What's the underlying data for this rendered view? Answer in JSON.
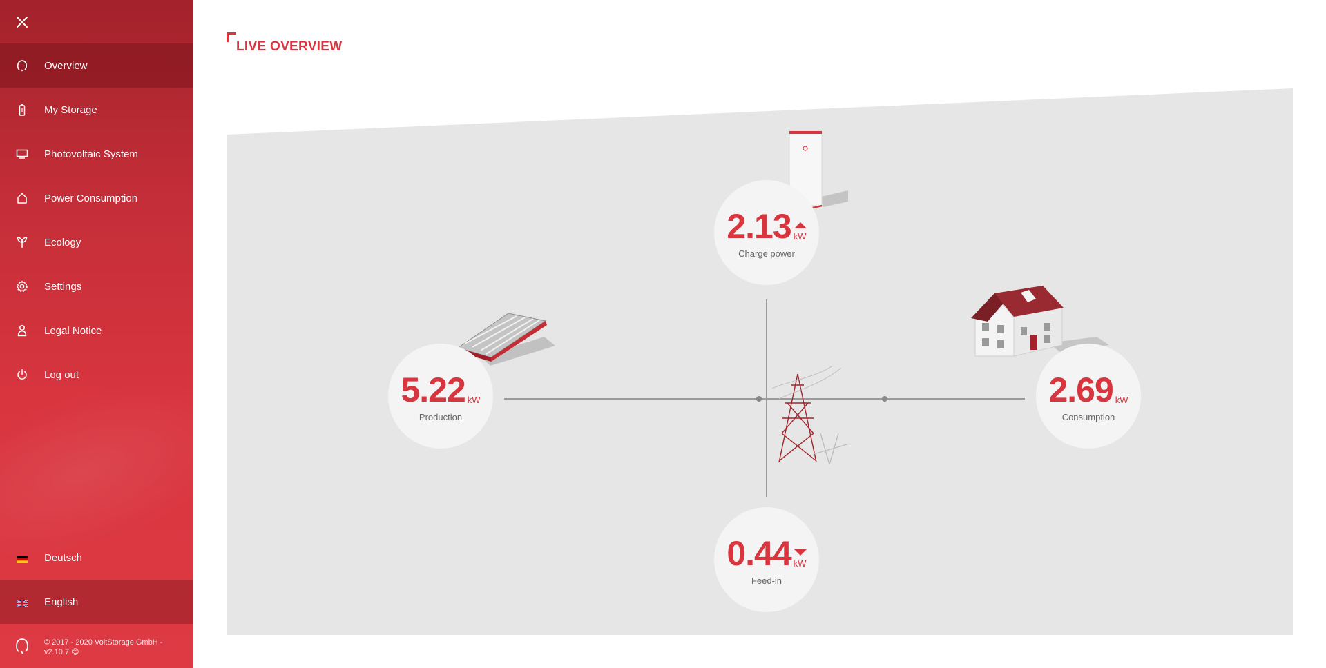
{
  "sidebar": {
    "items": [
      {
        "label": "Overview",
        "icon": "overview-logo-icon",
        "active": true
      },
      {
        "label": "My Storage",
        "icon": "battery-icon"
      },
      {
        "label": "Photovoltaic System",
        "icon": "monitor-icon"
      },
      {
        "label": "Power Consumption",
        "icon": "house-icon"
      },
      {
        "label": "Ecology",
        "icon": "leaf-icon"
      },
      {
        "label": "Settings",
        "icon": "gear-icon"
      },
      {
        "label": "Legal Notice",
        "icon": "person-icon"
      },
      {
        "label": "Log out",
        "icon": "power-icon"
      }
    ],
    "languages": [
      {
        "label": "Deutsch",
        "icon": "flag-de-icon"
      },
      {
        "label": "English",
        "icon": "flag-uk-icon",
        "active": true
      }
    ],
    "footer": {
      "copyright": "© 2017 - 2020 VoltStorage GmbH - v2.10.7 😊"
    }
  },
  "page": {
    "title": "LIVE OVERVIEW"
  },
  "overview": {
    "charge": {
      "value": "2.13",
      "unit": "kW",
      "label": "Charge power",
      "direction": "up"
    },
    "production": {
      "value": "5.22",
      "unit": "kW",
      "label": "Production"
    },
    "consumption": {
      "value": "2.69",
      "unit": "kW",
      "label": "Consumption"
    },
    "feedin": {
      "value": "0.44",
      "unit": "kW",
      "label": "Feed-in",
      "direction": "down"
    }
  },
  "colors": {
    "accent": "#d8353f",
    "sidebar_dark": "#a3222b",
    "panel": "#e6e6e6",
    "circle": "#f4f4f4"
  }
}
